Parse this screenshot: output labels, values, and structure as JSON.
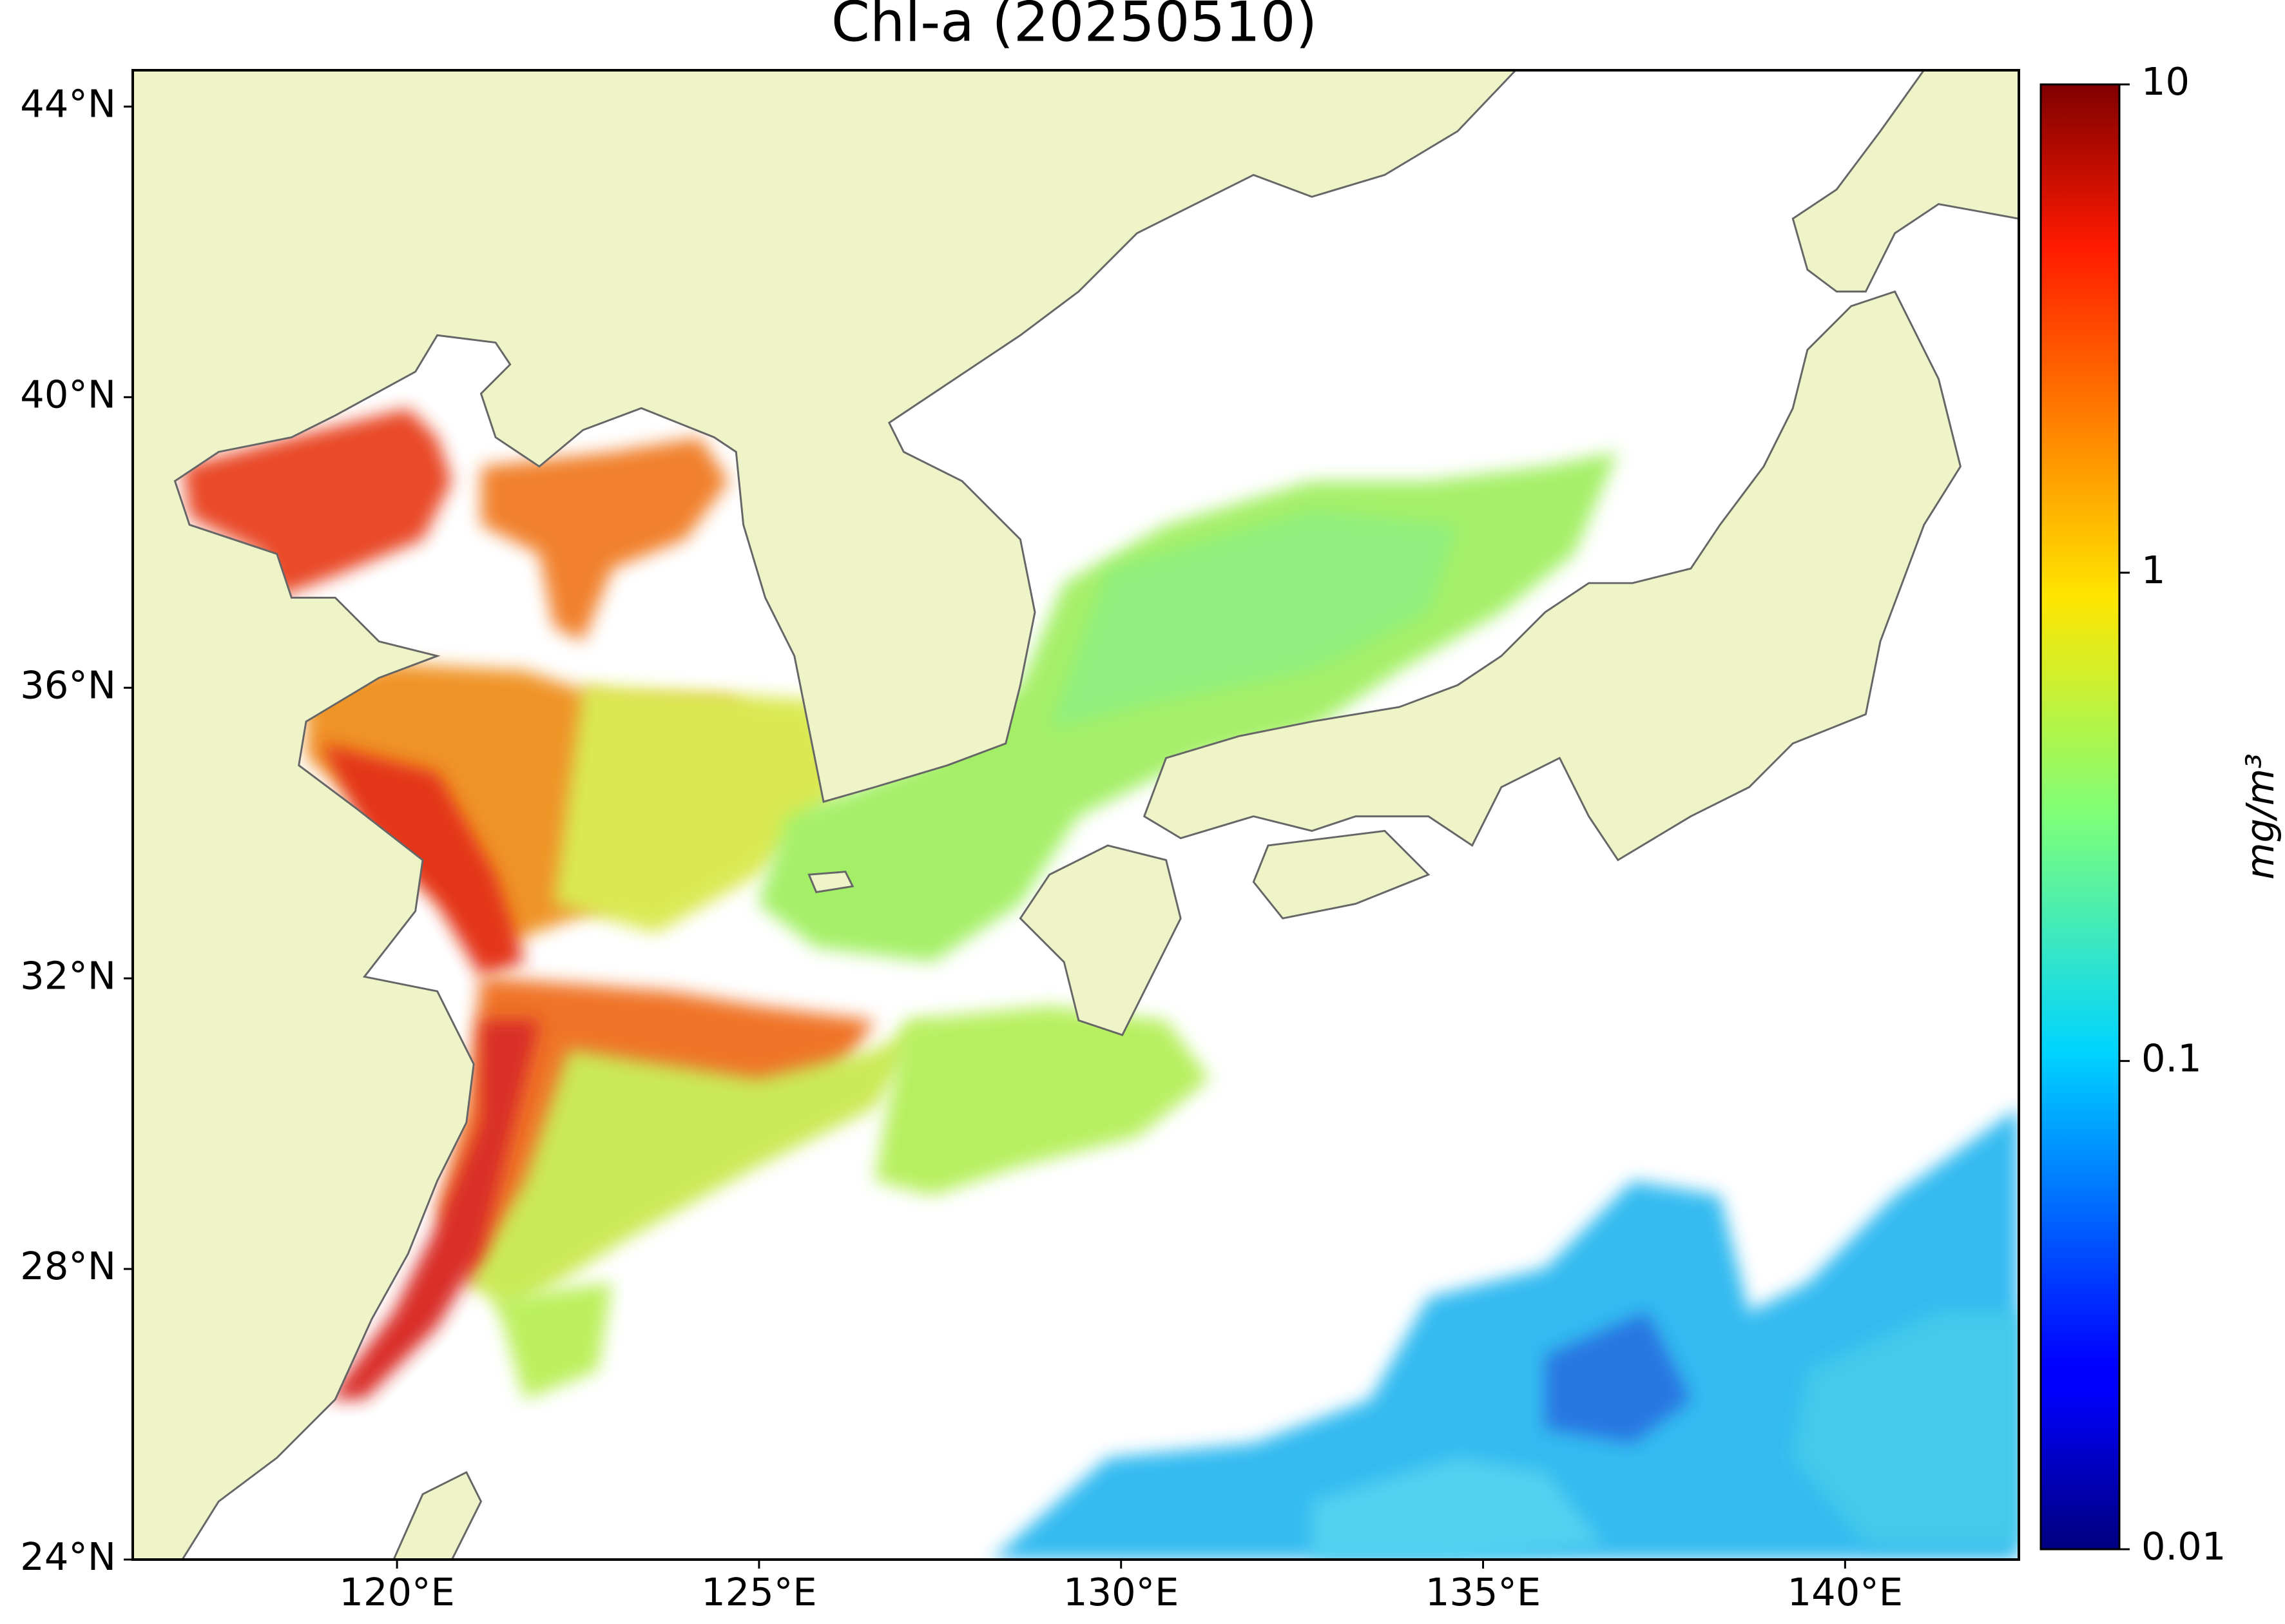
{
  "chart_data": {
    "type": "map",
    "title": "Chl-a (20250510)",
    "xlim": [
      116.35,
      142.4
    ],
    "ylim": [
      24,
      44.5
    ],
    "xticks": [
      {
        "value": 120,
        "label": "120°E"
      },
      {
        "value": 125,
        "label": "125°E"
      },
      {
        "value": 130,
        "label": "130°E"
      },
      {
        "value": 135,
        "label": "135°E"
      },
      {
        "value": 140,
        "label": "140°E"
      }
    ],
    "yticks": [
      {
        "value": 24,
        "label": "24°N"
      },
      {
        "value": 28,
        "label": "28°N"
      },
      {
        "value": 32,
        "label": "32°N"
      },
      {
        "value": 36,
        "label": "36°N"
      },
      {
        "value": 40,
        "label": "40°N"
      },
      {
        "value": 44,
        "label": "44°N"
      }
    ],
    "colorbar": {
      "label": "mg/m³",
      "lim": [
        0.01,
        10
      ],
      "ticks": [
        0.01,
        0.1,
        1,
        10
      ],
      "log_scale": true,
      "colormap": "jet"
    }
  }
}
